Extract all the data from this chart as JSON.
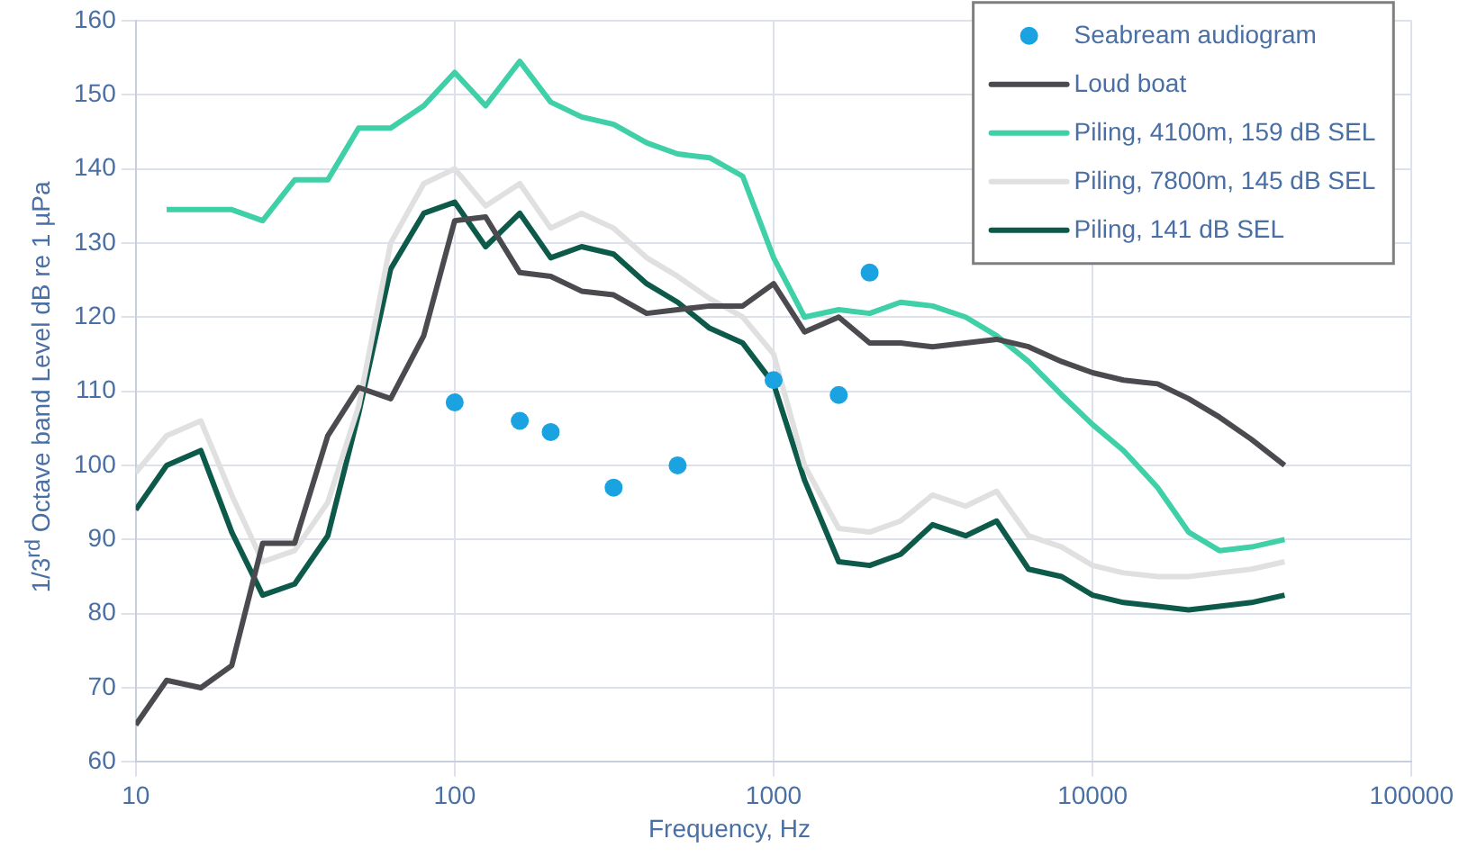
{
  "chart_data": {
    "type": "line",
    "xlabel": "Frequency, Hz",
    "ylabel": "1/3$^{rd}$ Octave band Level dB re 1 µPa",
    "log": "x",
    "xlim": [
      10,
      100000
    ],
    "xticks": [
      10,
      100,
      1000,
      10000,
      100000
    ],
    "ylim": [
      60,
      160
    ],
    "yticks": [
      60,
      70,
      80,
      90,
      100,
      110,
      120,
      130,
      140,
      150,
      160
    ],
    "grid": true,
    "legend": "top right",
    "marker": "none",
    "line_style": "solid",
    "x": [
      10,
      12.5,
      16,
      20,
      25,
      31.5,
      40,
      50,
      63,
      80,
      100,
      125,
      160,
      200,
      250,
      315,
      400,
      500,
      630,
      800,
      1000,
      1250,
      1600,
      2000,
      2500,
      3150,
      4000,
      5000,
      6300,
      8000,
      10000,
      12500,
      16000,
      20000,
      25000,
      31500,
      40000
    ],
    "series": [
      {
        "name": "Seabream audiogram",
        "type": "scatter",
        "marker": "circle",
        "color": "#1aa3e0",
        "x": [
          100,
          160,
          200,
          315,
          500,
          1000,
          1600,
          2000
        ],
        "values": [
          108.5,
          106,
          104.5,
          97,
          100,
          111.5,
          109.5,
          126
        ]
      },
      {
        "name": "Loud boat",
        "color": "#4a4a4f",
        "values": [
          65,
          71,
          70,
          73,
          89.5,
          89.5,
          104,
          110.5,
          109,
          117.5,
          133,
          133.5,
          126,
          125.5,
          123.5,
          123,
          120.5,
          121,
          121.5,
          121.5,
          124.5,
          118,
          120,
          116.5,
          116.5,
          116,
          116.5,
          117,
          116,
          114,
          112.5,
          111.5,
          111,
          109,
          106.5,
          103.5,
          100
        ]
      },
      {
        "name": "Piling, 4100m, 159 dB SEL",
        "color": "#3fd0a8",
        "values": [
          null,
          134.5,
          134.5,
          134.5,
          133,
          138.5,
          138.5,
          145.5,
          145.5,
          148.5,
          153,
          148.5,
          154.5,
          149,
          147,
          146,
          143.5,
          142,
          141.5,
          139,
          128,
          120,
          121,
          120.5,
          122,
          121.5,
          120,
          117.5,
          114,
          109.5,
          105.5,
          102,
          97,
          91,
          88.5,
          89,
          90
        ]
      },
      {
        "name": "Piling, 7800m, 145 dB SEL",
        "color": "#e0e0e0",
        "values": [
          99,
          104,
          106,
          96,
          87,
          88.5,
          95,
          108,
          130,
          138,
          140,
          135,
          138,
          132,
          134,
          132,
          128,
          125.5,
          122.5,
          120,
          115,
          100,
          91.5,
          91,
          92.5,
          96,
          94.5,
          96.5,
          90.5,
          89,
          86.5,
          85.5,
          85,
          85,
          85.5,
          86,
          87
        ]
      },
      {
        "name": "Piling, 141 dB SEL",
        "color": "#0d5a4a",
        "values": [
          94,
          100,
          102,
          91,
          82.5,
          84,
          90.5,
          107,
          126.5,
          134,
          135.5,
          129.5,
          134,
          128,
          129.5,
          128.5,
          124.5,
          122,
          118.5,
          116.5,
          111,
          98,
          87,
          86.5,
          88,
          92,
          90.5,
          92.5,
          86,
          85,
          82.5,
          81.5,
          81,
          80.5,
          81,
          81.5,
          82.5
        ]
      }
    ]
  }
}
